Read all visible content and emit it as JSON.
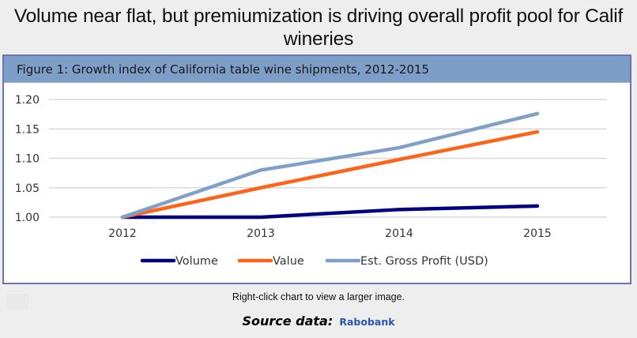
{
  "page": {
    "title": "Volume near flat, but premiumization is driving overall profit pool for Calif wineries",
    "figure_title": "Figure 1: Growth index of California table wine shipments, 2012-2015",
    "note": "Right-click chart to view a larger image.",
    "source_label": "Source data:",
    "source_link": "Rabobank"
  },
  "colors": {
    "volume": "#000080",
    "value": "#ff6318",
    "profit": "#7fa0c8",
    "header_bg": "#7d9ec7",
    "frame_border": "#6e72b8",
    "link": "#2a55b0"
  },
  "chart_data": {
    "type": "line",
    "title": "Figure 1: Growth index of California table wine shipments, 2012-2015",
    "xlabel": "",
    "ylabel": "",
    "categories": [
      "2012",
      "2013",
      "2014",
      "2015"
    ],
    "ylim": [
      1.0,
      1.2
    ],
    "yticks": [
      "1.00",
      "1.05",
      "1.10",
      "1.15",
      "1.20"
    ],
    "grid": true,
    "legend_position": "bottom",
    "series": [
      {
        "name": "Volume",
        "color": "#000080",
        "values": [
          1.0,
          1.0,
          1.013,
          1.019
        ]
      },
      {
        "name": "Value",
        "color": "#ff6318",
        "values": [
          1.0,
          1.05,
          1.098,
          1.145
        ]
      },
      {
        "name": "Est. Gross Profit (USD)",
        "color": "#7fa0c8",
        "values": [
          1.0,
          1.08,
          1.118,
          1.176
        ]
      }
    ]
  }
}
